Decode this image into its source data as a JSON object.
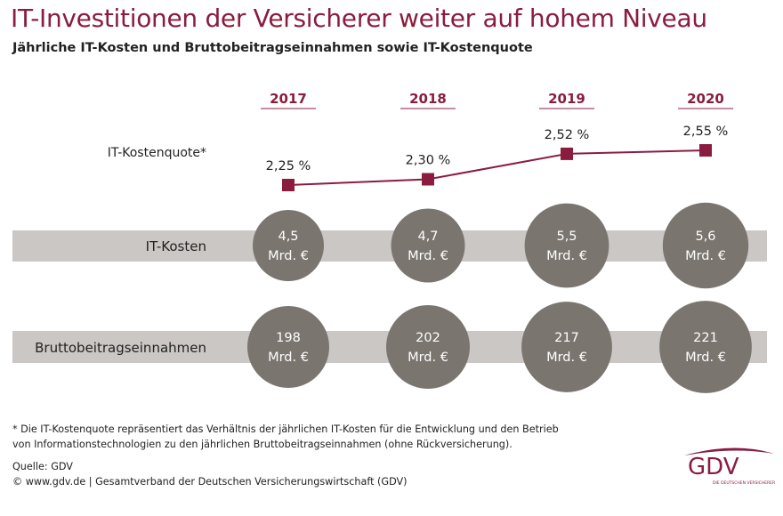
{
  "title": "IT-Investitionen der Versicherer weiter auf hohem Niveau",
  "subtitle": "Jährliche IT-Kosten und Bruttobeitragseinnahmen sowie IT-Kostenquote",
  "chart_data": {
    "type": "line",
    "categories": [
      "2017",
      "2018",
      "2019",
      "2020"
    ],
    "series": [
      {
        "name": "IT-Kostenquote*",
        "values": [
          2.25,
          2.3,
          2.52,
          2.55
        ],
        "labels": [
          "2,25 %",
          "2,30 %",
          "2,52 %",
          "2,55 %"
        ],
        "color": "#8a1c3f"
      },
      {
        "name": "IT-Kosten",
        "values": [
          4.5,
          4.7,
          5.5,
          5.6
        ],
        "labels": [
          "4,5",
          "4,7",
          "5,5",
          "5,6"
        ],
        "unit": "Mrd. €"
      },
      {
        "name": "Bruttobeitragseinnahmen",
        "values": [
          198,
          202,
          217,
          221
        ],
        "labels": [
          "198",
          "202",
          "217",
          "221"
        ],
        "unit": "Mrd. €"
      }
    ],
    "colors": {
      "accent": "#8a1c3f",
      "circle": "#7a756f",
      "band": "#cbc7c5"
    }
  },
  "footnote": [
    "* Die IT-Kostenquote repräsentiert das Verhältnis der jährlichen IT-Kosten für die Entwicklung und den Betrieb",
    "von Informationstechnologien zu den jährlichen Bruttobeitragseinnahmen (ohne Rückversicherung)."
  ],
  "source": "Quelle: GDV",
  "copyright": "© www.gdv.de | Gesamtverband der Deutschen Versicherungswirtschaft (GDV)",
  "logo": {
    "text": "GDV",
    "tagline": "DIE DEUTSCHEN VERSICHERER"
  }
}
